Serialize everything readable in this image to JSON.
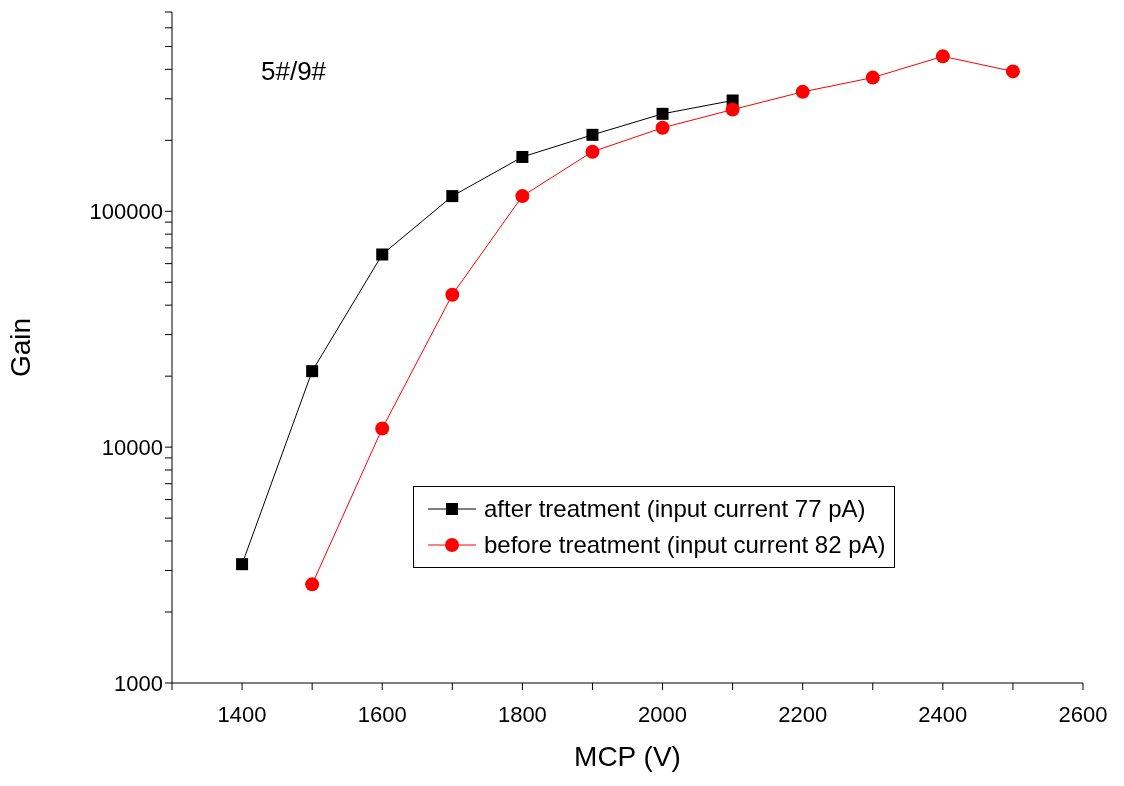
{
  "chart_data": {
    "type": "line",
    "xlabel": "MCP (V)",
    "ylabel": "Gain",
    "annotations": [
      "5#/9#"
    ],
    "log": "y",
    "grid": false,
    "legend": "right",
    "line_style": "solid",
    "xlim": [
      1300,
      2600
    ],
    "xticks": [
      {
        "value": 1300,
        "label": null
      },
      1400,
      {
        "value": 1500,
        "label": null
      },
      1600,
      {
        "value": 1700,
        "label": null
      },
      1800,
      {
        "value": 1900,
        "label": null
      },
      2000,
      {
        "value": 2100,
        "label": null
      },
      2200,
      {
        "value": 2300,
        "label": null
      },
      2400,
      {
        "value": 2500,
        "label": null
      },
      2600
    ],
    "ylim": [
      1000,
      700000
    ],
    "yticks": [
      1000,
      {
        "value": 2000,
        "label": null
      },
      {
        "value": 3000,
        "label": null
      },
      {
        "value": 4000,
        "label": null
      },
      {
        "value": 5000,
        "label": null
      },
      {
        "value": 6000,
        "label": null
      },
      {
        "value": 7000,
        "label": null
      },
      {
        "value": 8000,
        "label": null
      },
      {
        "value": 9000,
        "label": null
      },
      10000,
      {
        "value": 20000,
        "label": null
      },
      {
        "value": 30000,
        "label": null
      },
      {
        "value": 40000,
        "label": null
      },
      {
        "value": 50000,
        "label": null
      },
      {
        "value": 60000,
        "label": null
      },
      {
        "value": 70000,
        "label": null
      },
      {
        "value": 80000,
        "label": null
      },
      {
        "value": 90000,
        "label": null
      },
      100000,
      {
        "value": 200000,
        "label": null
      },
      {
        "value": 300000,
        "label": null
      },
      {
        "value": 400000,
        "label": null
      },
      {
        "value": 500000,
        "label": null
      },
      {
        "value": 600000,
        "label": null
      },
      {
        "value": 700000,
        "label": null
      }
    ],
    "series": [
      {
        "name": "after treatment (input current 77 pA)",
        "color": "#000000",
        "marker": "square",
        "x": [
          1400,
          1500,
          1600,
          1700,
          1800,
          1900,
          2000,
          2100
        ],
        "values": [
          3190,
          21000,
          65600,
          116000,
          170000,
          211000,
          259000,
          295000
        ]
      },
      {
        "name": "before treatment (input current 82 pA)",
        "color": "#ff0000",
        "marker": "circle",
        "x": [
          1500,
          1600,
          1700,
          1800,
          1900,
          2000,
          2100,
          2200,
          2300,
          2400,
          2500
        ],
        "values": [
          2620,
          12000,
          44300,
          116000,
          179000,
          226000,
          270000,
          321000,
          369000,
          454000,
          392000
        ]
      }
    ]
  }
}
